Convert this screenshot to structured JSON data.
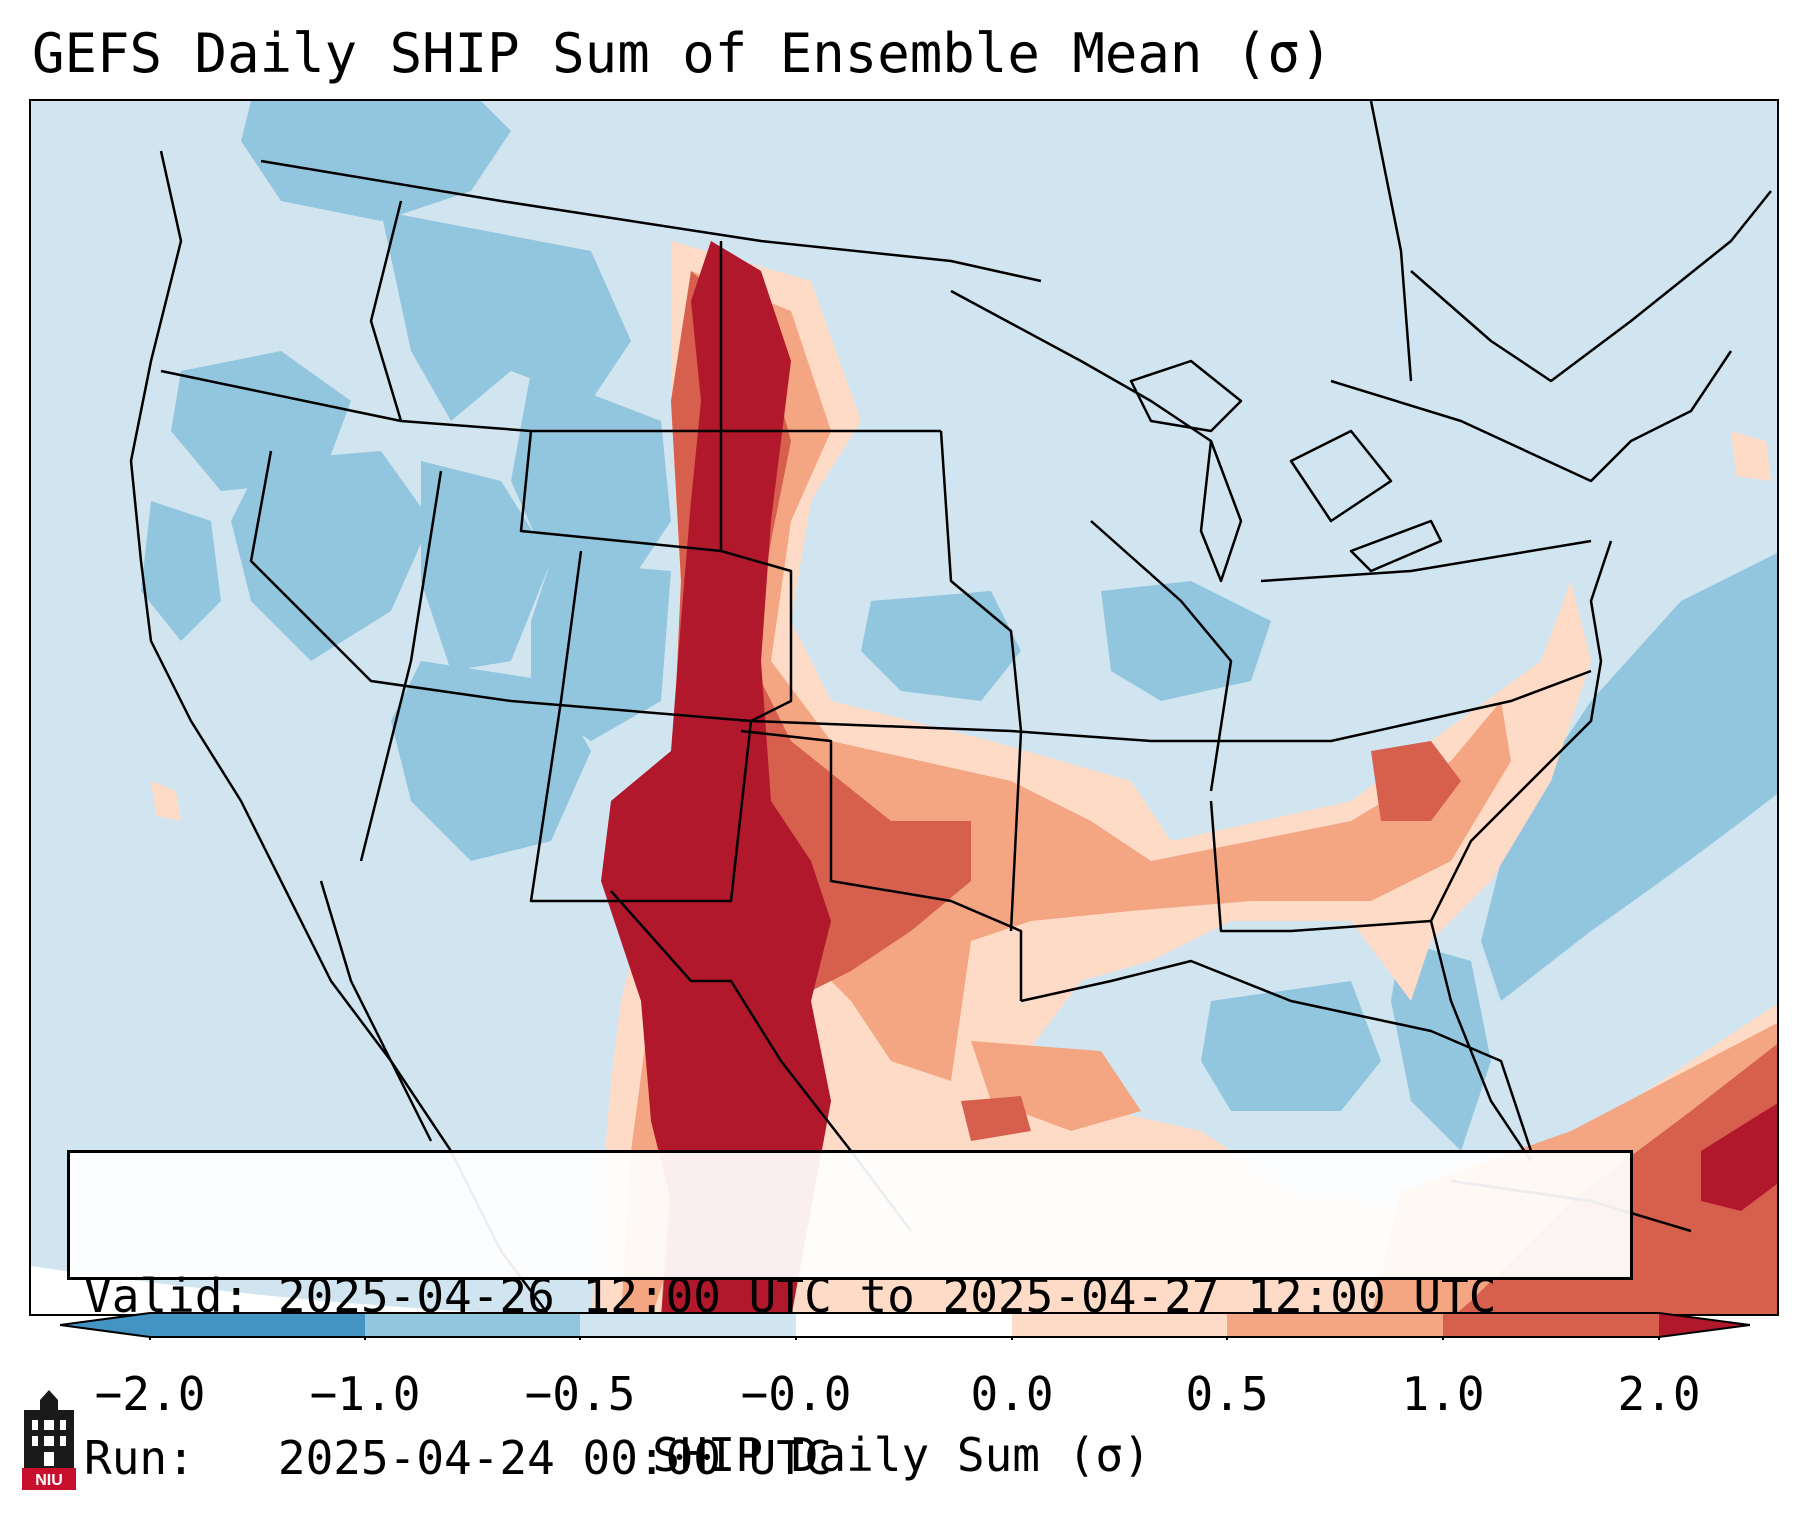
{
  "title": "GEFS Daily SHIP Sum of Ensemble Mean (σ)",
  "info": {
    "valid_label": "Valid:",
    "valid_value": "2025-04-26 12:00 UTC to 2025-04-27 12:00 UTC",
    "run_label": "Run:",
    "run_value": "2025-04-24 00:00 UTC"
  },
  "colorbar": {
    "label": "SHIP Daily Sum (σ)",
    "ticks": [
      "−2.0",
      "−1.0",
      "−0.5",
      "−0.0",
      "0.0",
      "0.5",
      "1.0",
      "2.0"
    ],
    "colors": [
      "#4393c3",
      "#92c5de",
      "#d1e5f0",
      "#ffffff",
      "#fddbc7",
      "#f4a582",
      "#d6604d",
      "#b2182b"
    ],
    "extend": "both"
  },
  "legend_colors": {
    "strong_negative": "#4393c3",
    "negative": "#92c5de",
    "weak_negative": "#d1e5f0",
    "neutral": "#ffffff",
    "weak_positive": "#fddbc7",
    "positive": "#f4a582",
    "strong_positive": "#d6604d",
    "extreme_positive": "#b2182b"
  },
  "logo": {
    "text": "NIU",
    "color": "#c8102e"
  }
}
